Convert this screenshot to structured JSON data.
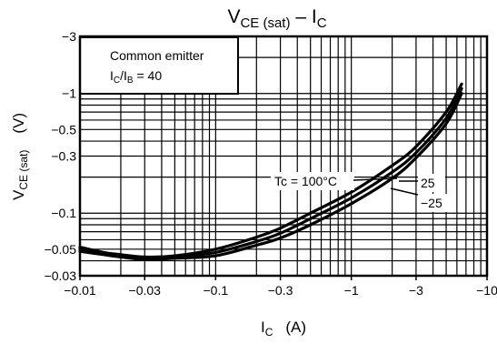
{
  "chart_data": {
    "type": "line",
    "title": {
      "main": "V",
      "main_sub": "CE (sat)",
      "sep": " – ",
      "main2": "I",
      "main2_sub": "C"
    },
    "xlabel": {
      "main": "I",
      "sub": "C",
      "unit": "(A)"
    },
    "ylabel": {
      "main": "V",
      "sub": "CE (sat)",
      "unit": "(V)"
    },
    "x_scale": "log",
    "y_scale": "log",
    "xlim": [
      -0.01,
      -10
    ],
    "ylim": [
      -0.03,
      -3
    ],
    "x_ticks": [
      {
        "value": -0.01,
        "label": "−0.01"
      },
      {
        "value": -0.03,
        "label": "−0.03"
      },
      {
        "value": -0.1,
        "label": "−0.1"
      },
      {
        "value": -0.3,
        "label": "−0.3"
      },
      {
        "value": -1,
        "label": "−1"
      },
      {
        "value": -3,
        "label": "−3"
      },
      {
        "value": -10,
        "label": "−10"
      }
    ],
    "y_ticks": [
      {
        "value": -0.03,
        "label": "−0.03"
      },
      {
        "value": -0.05,
        "label": "−0.05"
      },
      {
        "value": -0.1,
        "label": "−0.1"
      },
      {
        "value": -0.3,
        "label": "−0.3"
      },
      {
        "value": -0.5,
        "label": "−0.5"
      },
      {
        "value": -1,
        "label": "−1"
      },
      {
        "value": -3,
        "label": "−3"
      }
    ],
    "grid": true,
    "legend_box": {
      "line1": "Common emitter",
      "ratio_main": "I",
      "ratio_sub1": "C",
      "ratio_mid": "/I",
      "ratio_sub2": "B",
      "ratio_value": " = 40"
    },
    "series": [
      {
        "name": "Tc = 100°C",
        "x": [
          -0.01,
          -0.015,
          -0.02,
          -0.03,
          -0.05,
          -0.1,
          -0.2,
          -0.3,
          -0.5,
          -1,
          -2,
          -3,
          -5,
          -6.5
        ],
        "y": [
          -0.052,
          -0.047,
          -0.045,
          -0.043,
          -0.044,
          -0.05,
          -0.063,
          -0.075,
          -0.1,
          -0.15,
          -0.25,
          -0.36,
          -0.7,
          -1.2
        ]
      },
      {
        "name": "25",
        "x": [
          -0.01,
          -0.015,
          -0.02,
          -0.03,
          -0.05,
          -0.1,
          -0.2,
          -0.3,
          -0.5,
          -1,
          -2,
          -3,
          -5,
          -6.5
        ],
        "y": [
          -0.05,
          -0.046,
          -0.044,
          -0.042,
          -0.043,
          -0.047,
          -0.058,
          -0.068,
          -0.09,
          -0.134,
          -0.22,
          -0.32,
          -0.62,
          -1.1
        ]
      },
      {
        "name": "−25",
        "x": [
          -0.01,
          -0.015,
          -0.02,
          -0.03,
          -0.05,
          -0.1,
          -0.2,
          -0.3,
          -0.5,
          -1,
          -2,
          -3,
          -5,
          -6.5
        ],
        "y": [
          -0.048,
          -0.045,
          -0.043,
          -0.041,
          -0.042,
          -0.044,
          -0.054,
          -0.062,
          -0.08,
          -0.12,
          -0.195,
          -0.29,
          -0.56,
          -1.0
        ]
      }
    ]
  }
}
